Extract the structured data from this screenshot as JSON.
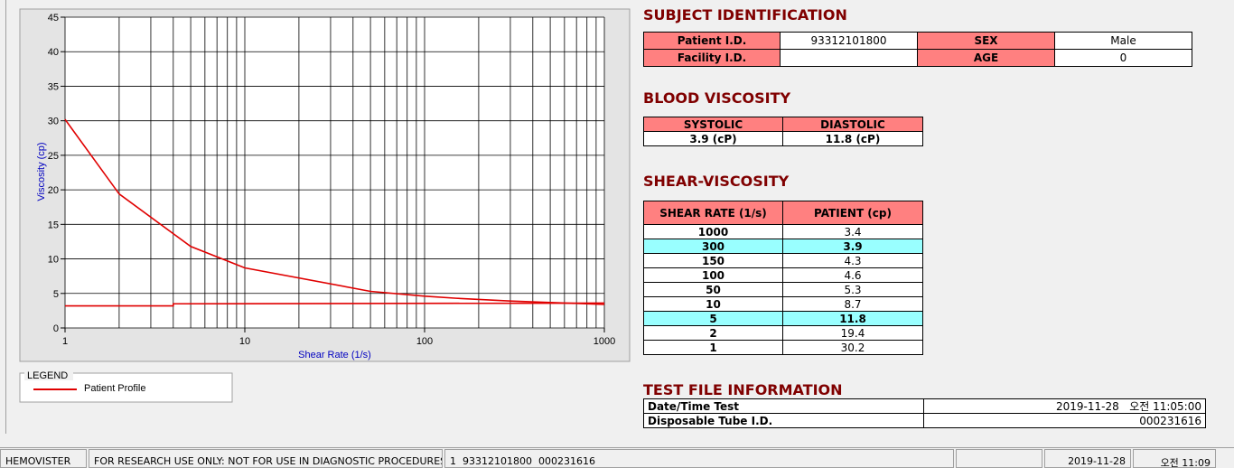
{
  "chart_data": {
    "type": "line",
    "x_label": "Shear Rate (1/s)",
    "y_label": "Viscosity (cp)",
    "xlog": true,
    "xlim": [
      1,
      1000
    ],
    "xticks": [
      1,
      10,
      100,
      1000
    ],
    "xminorticks": [
      2,
      3,
      4,
      5,
      6,
      7,
      8,
      9,
      20,
      30,
      40,
      50,
      60,
      70,
      80,
      90,
      200,
      300,
      400,
      500,
      600,
      700,
      800,
      900
    ],
    "ylim": [
      0,
      45
    ],
    "yticks": [
      0,
      5,
      10,
      15,
      20,
      25,
      30,
      35,
      40,
      45
    ],
    "grid": true,
    "legend_title": "LEGEND",
    "series": [
      {
        "name": "Patient Profile",
        "color": "#e00000",
        "x": [
          1,
          2,
          5,
          10,
          50,
          100,
          150,
          300,
          1000
        ],
        "values": [
          30.2,
          19.4,
          11.8,
          8.7,
          5.3,
          4.6,
          4.3,
          3.9,
          3.4
        ]
      },
      {
        "color": "#e00000",
        "x": [
          1,
          4,
          4,
          1000
        ],
        "values": [
          3.2,
          3.2,
          3.5,
          3.6
        ]
      }
    ]
  },
  "subject": {
    "title": "SUBJECT IDENTIFICATION",
    "rows": [
      [
        "Patient I.D.",
        "93312101800",
        "SEX",
        "Male"
      ],
      [
        "Facility I.D.",
        null,
        "AGE",
        "0"
      ]
    ]
  },
  "blood": {
    "title": "BLOOD VISCOSITY",
    "headers": [
      "SYSTOLIC",
      "DIASTOLIC"
    ],
    "values": [
      "3.9 (cP)",
      "11.8 (cP)"
    ]
  },
  "shear": {
    "title": "SHEAR-VISCOSITY",
    "headers": [
      "SHEAR RATE (1/s)",
      "PATIENT (cp)"
    ],
    "highlight_color": "#99ffff",
    "rows": [
      {
        "rate": 1000,
        "patient": 3.4
      },
      {
        "rate": 300,
        "patient": 3.9,
        "highlight": true
      },
      {
        "rate": 150,
        "patient": 4.3
      },
      {
        "rate": 100,
        "patient": 4.6
      },
      {
        "rate": 50,
        "patient": 5.3
      },
      {
        "rate": 10,
        "patient": 8.7
      },
      {
        "rate": 5,
        "patient": 11.8,
        "highlight": true
      },
      {
        "rate": 2,
        "patient": 19.4
      },
      {
        "rate": 1,
        "patient": 30.2
      }
    ]
  },
  "test_file": {
    "title": "TEST FILE INFORMATION",
    "rows": [
      [
        "Date/Time Test",
        "2019-11-28   오전 11:05:00"
      ],
      [
        "Disposable Tube I.D.",
        "000231616"
      ]
    ]
  },
  "status_bar": {
    "app": "HEMOVISTER",
    "notice": "FOR RESEARCH USE ONLY: NOT FOR USE IN DIAGNOSTIC PROCEDURES",
    "record": "1  93312101800  000231616",
    "date": "2019-11-28",
    "time": "오전 11:09"
  }
}
